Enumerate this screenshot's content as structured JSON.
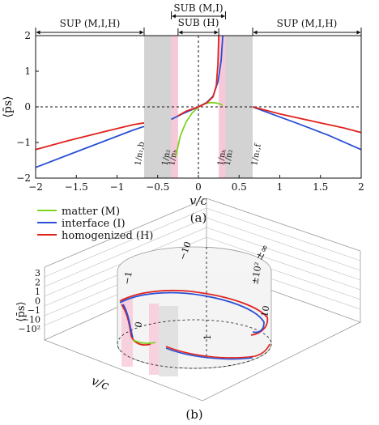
{
  "chart_data": [
    {
      "type": "line",
      "panel_label": "(a)",
      "xlabel": "v/c",
      "ylabel": "⟨p̄s⟩",
      "xlim": [
        -2,
        2
      ],
      "ylim": [
        -2,
        2
      ],
      "x_ticks": [
        "−2",
        "−1.5",
        "−1",
        "−0.5",
        "0",
        "0.5",
        "1",
        "1.5",
        "2"
      ],
      "x_tick_values": [
        -2,
        -1.5,
        -1,
        -0.5,
        0,
        0.5,
        1,
        1.5,
        2
      ],
      "y_ticks": [
        "2",
        "1",
        "0",
        "−1",
        "−2"
      ],
      "y_tick_values": [
        2,
        1,
        0,
        -1,
        -2
      ],
      "grid": false,
      "regions": [
        {
          "label": "SUP (M,I,H)",
          "from": -2,
          "to": -0.667
        },
        {
          "label": "SUB (M,I)",
          "from": -0.333,
          "to": 0.333
        },
        {
          "label": "SUB (H)",
          "from": -0.25,
          "to": 0.25
        },
        {
          "label": "SUP (M,I,H)",
          "from": 0.667,
          "to": 2
        }
      ],
      "shaded_bands": [
        {
          "from": -0.667,
          "to": -0.333,
          "color": "#d3d3d3"
        },
        {
          "from": -0.333,
          "to": -0.25,
          "color": "#f7c8d8"
        },
        {
          "from": 0.25,
          "to": 0.333,
          "color": "#f7c8d8"
        },
        {
          "from": 0.333,
          "to": 0.667,
          "color": "#d3d3d3"
        }
      ],
      "vertical_labels": [
        {
          "text": "1/n₁,b",
          "x": -0.667
        },
        {
          "text": "1/n₂",
          "x": -0.333
        },
        {
          "text": "1/nₕ",
          "x": -0.25
        },
        {
          "text": "1/nₕ",
          "x": 0.25
        },
        {
          "text": "1/n₂",
          "x": 0.333
        },
        {
          "text": "1/n₁,f",
          "x": 0.667
        }
      ],
      "series": [
        {
          "name": "matter (M)",
          "color": "#7ed321",
          "segments": [
            [
              [
                -0.28,
                -1.4
              ],
              [
                -0.22,
                -0.8
              ],
              [
                -0.15,
                -0.42
              ],
              [
                -0.08,
                -0.18
              ],
              [
                0,
                0
              ],
              [
                0.08,
                0.09
              ],
              [
                0.15,
                0.12
              ],
              [
                0.22,
                0.11
              ],
              [
                0.3,
                0.05
              ]
            ]
          ]
        },
        {
          "name": "interface (I)",
          "color": "#2a4fd6",
          "segments": [
            [
              [
                -2,
                -1.7
              ],
              [
                -1.6,
                -1.35
              ],
              [
                -1.2,
                -1.0
              ],
              [
                -0.8,
                -0.65
              ],
              [
                -0.667,
                -0.55
              ]
            ],
            [
              [
                -0.333,
                -0.35
              ],
              [
                -0.2,
                -0.2
              ],
              [
                -0.1,
                -0.1
              ],
              [
                0,
                0
              ],
              [
                0.1,
                0.12
              ],
              [
                0.18,
                0.3
              ],
              [
                0.24,
                0.7
              ],
              [
                0.28,
                1.3
              ],
              [
                0.3,
                2
              ]
            ],
            [
              [
                0.667,
                0
              ],
              [
                0.9,
                -0.2
              ],
              [
                1.2,
                -0.45
              ],
              [
                1.6,
                -0.8
              ],
              [
                2,
                -1.2
              ]
            ]
          ]
        },
        {
          "name": "homogenized (H)",
          "color": "#e0221c",
          "segments": [
            [
              [
                -2,
                -1.2
              ],
              [
                -1.6,
                -0.95
              ],
              [
                -1.2,
                -0.72
              ],
              [
                -0.8,
                -0.5
              ],
              [
                -0.667,
                -0.45
              ]
            ],
            [
              [
                -0.25,
                -0.25
              ],
              [
                -0.15,
                -0.12
              ],
              [
                0,
                0
              ],
              [
                0.1,
                0.11
              ],
              [
                0.18,
                0.28
              ],
              [
                0.22,
                0.6
              ],
              [
                0.24,
                1.2
              ],
              [
                0.25,
                2
              ]
            ],
            [
              [
                0.667,
                0
              ],
              [
                1.0,
                -0.2
              ],
              [
                1.4,
                -0.4
              ],
              [
                1.8,
                -0.6
              ],
              [
                2,
                -0.72
              ]
            ]
          ]
        }
      ]
    },
    {
      "type": "line",
      "panel_label": "(b)",
      "xlabel": "v/c",
      "ylabel": "⟨p̄s⟩",
      "y_ticks": [
        "3",
        "2",
        "1",
        "0",
        "−1",
        "−10",
        "−10²"
      ],
      "ring_labels": [
        "−10",
        "−1",
        "0",
        "1",
        "10",
        "±10²",
        "±∞"
      ],
      "legend": [
        "matter (M)",
        "interface (I)",
        "homogenized (H)"
      ]
    }
  ]
}
